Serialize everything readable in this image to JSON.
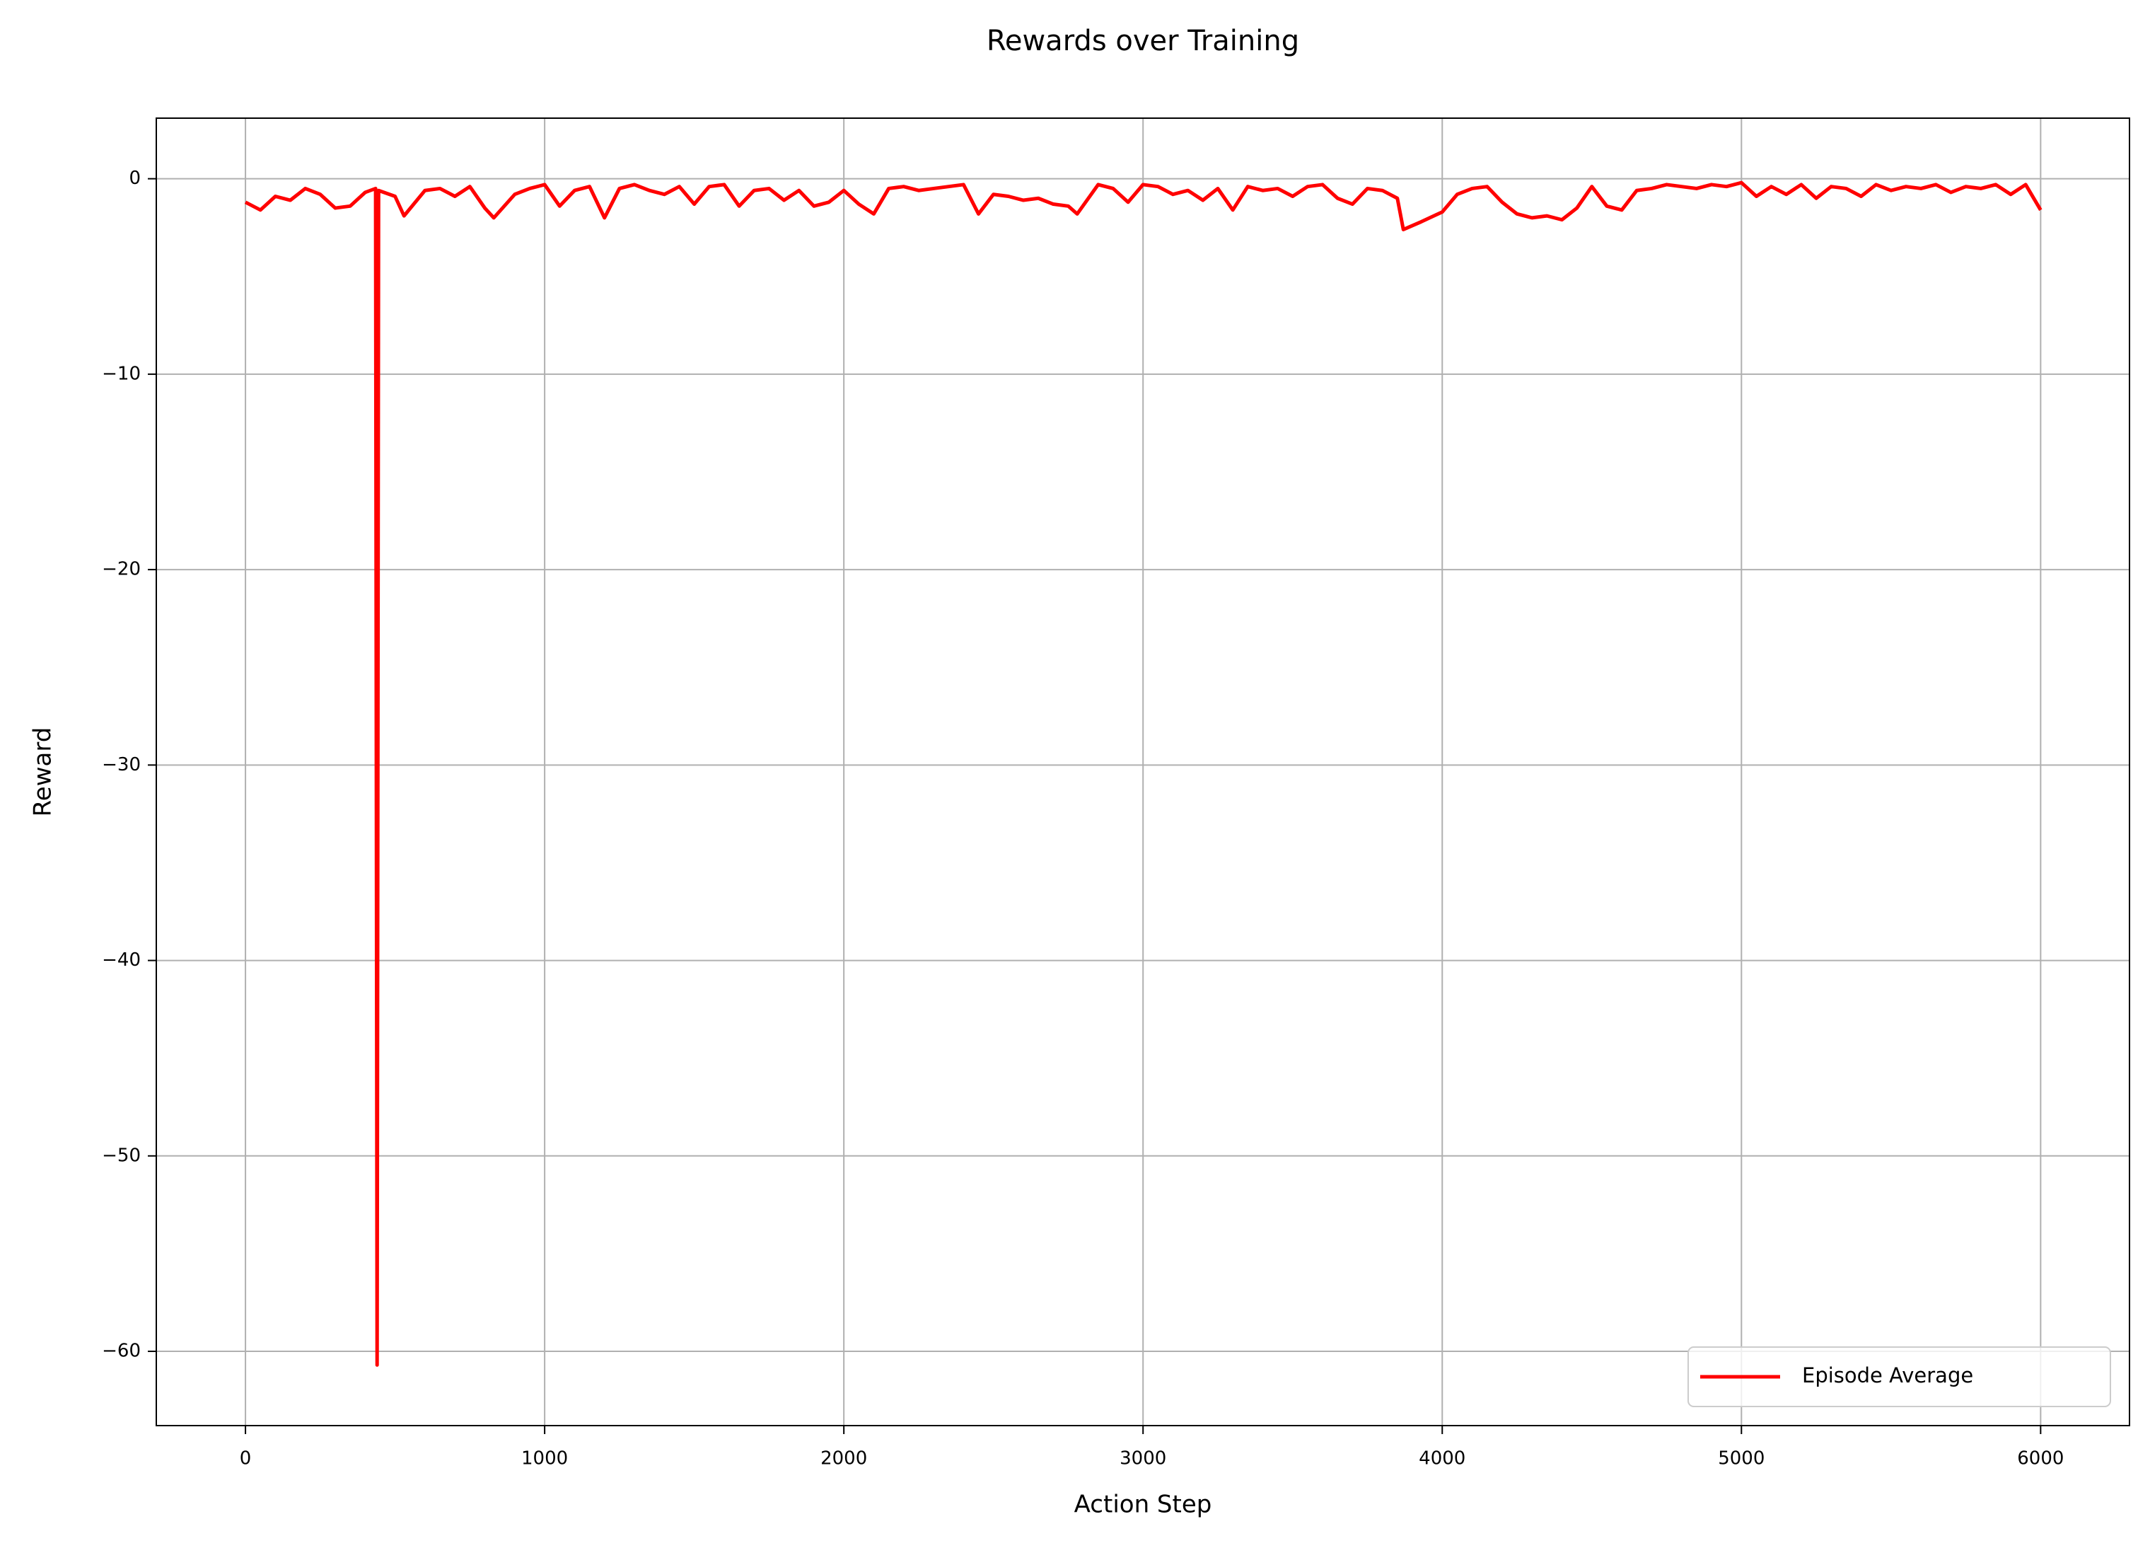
{
  "chart_data": {
    "type": "line",
    "title": "Rewards over Training",
    "x_label": "Action Step",
    "y_label": "Reward",
    "xlim": [
      -298,
      6297
    ],
    "ylim": [
      -63.8,
      3.1
    ],
    "xticks": [
      0,
      1000,
      2000,
      3000,
      4000,
      5000,
      6000
    ],
    "yticks": [
      0,
      {
        "value": -10,
        "label": "−10"
      },
      {
        "value": -20,
        "label": "−20"
      },
      {
        "value": -30,
        "label": "−30"
      },
      {
        "value": -40,
        "label": "−40"
      },
      {
        "value": -50,
        "label": "−50"
      },
      {
        "value": -60,
        "label": "−60"
      }
    ],
    "grid": true,
    "legend": "lower right",
    "x": [
      0,
      50,
      100,
      150,
      200,
      250,
      300,
      350,
      400,
      435,
      440,
      445,
      500,
      530,
      600,
      650,
      700,
      750,
      800,
      830,
      900,
      950,
      1000,
      1050,
      1100,
      1150,
      1200,
      1250,
      1300,
      1350,
      1400,
      1450,
      1500,
      1550,
      1600,
      1650,
      1700,
      1750,
      1800,
      1850,
      1900,
      1950,
      2000,
      2050,
      2100,
      2150,
      2200,
      2250,
      2300,
      2350,
      2400,
      2450,
      2500,
      2550,
      2600,
      2650,
      2700,
      2750,
      2780,
      2850,
      2900,
      2950,
      3000,
      3050,
      3100,
      3150,
      3200,
      3250,
      3300,
      3350,
      3400,
      3450,
      3500,
      3550,
      3600,
      3650,
      3700,
      3750,
      3800,
      3850,
      3870,
      3930,
      4000,
      4050,
      4100,
      4150,
      4200,
      4250,
      4300,
      4350,
      4400,
      4450,
      4500,
      4550,
      4600,
      4650,
      4700,
      4750,
      4800,
      4850,
      4900,
      4950,
      5000,
      5050,
      5100,
      5150,
      5200,
      5250,
      5300,
      5350,
      5400,
      5450,
      5500,
      5550,
      5600,
      5650,
      5700,
      5750,
      5800,
      5850,
      5900,
      5950,
      6000
    ],
    "series": [
      {
        "name": "Episode Average",
        "color": "#ff0000",
        "values": [
          -1.2,
          -1.6,
          -0.9,
          -1.1,
          -0.5,
          -0.8,
          -1.5,
          -1.4,
          -0.7,
          -0.5,
          -60.7,
          -0.6,
          -0.9,
          -1.9,
          -0.6,
          -0.5,
          -0.9,
          -0.4,
          -1.5,
          -2.0,
          -0.8,
          -0.5,
          -0.3,
          -1.4,
          -0.6,
          -0.4,
          -2.0,
          -0.5,
          -0.3,
          -0.6,
          -0.8,
          -0.4,
          -1.3,
          -0.4,
          -0.3,
          -1.4,
          -0.6,
          -0.5,
          -1.1,
          -0.6,
          -1.4,
          -1.2,
          -0.6,
          -1.3,
          -1.8,
          -0.5,
          -0.4,
          -0.6,
          -0.5,
          -0.4,
          -0.3,
          -1.8,
          -0.8,
          -0.9,
          -1.1,
          -1.0,
          -1.3,
          -1.4,
          -1.8,
          -0.3,
          -0.5,
          -1.2,
          -0.3,
          -0.4,
          -0.8,
          -0.6,
          -1.1,
          -0.5,
          -1.6,
          -0.4,
          -0.6,
          -0.5,
          -0.9,
          -0.4,
          -0.3,
          -1.0,
          -1.3,
          -0.5,
          -0.6,
          -1.0,
          -2.6,
          -2.2,
          -1.7,
          -0.8,
          -0.5,
          -0.4,
          -1.2,
          -1.8,
          -2.0,
          -1.9,
          -2.1,
          -1.5,
          -0.4,
          -1.4,
          -1.6,
          -0.6,
          -0.5,
          -0.3,
          -0.4,
          -0.5,
          -0.3,
          -0.4,
          -0.2,
          -0.9,
          -0.4,
          -0.8,
          -0.3,
          -1.0,
          -0.4,
          -0.5,
          -0.9,
          -0.3,
          -0.6,
          -0.4,
          -0.5,
          -0.3,
          -0.7,
          -0.4,
          -0.5,
          -0.3,
          -0.8,
          -0.3,
          -1.6
        ]
      }
    ]
  }
}
